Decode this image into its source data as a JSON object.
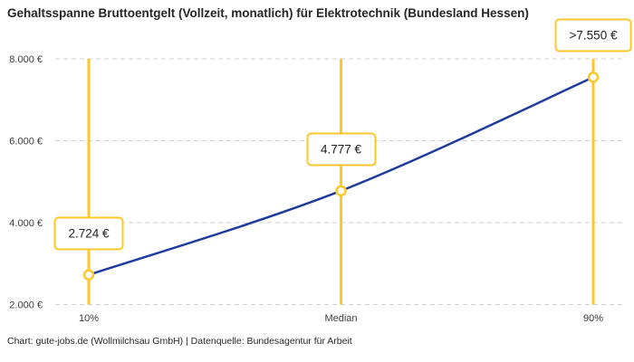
{
  "page": {
    "title": "Gehaltsspanne Bruttoentgelt (Vollzeit, monatlich) für Elektrotechnik (Bundesland Hessen)",
    "footer": "Chart: gute-jobs.de (Wollmilchsau GmbH) | Datenquelle: Bundesagentur für Arbeit"
  },
  "colors": {
    "accent_yellow": "#FFC629",
    "line_blue": "#1E3C9E",
    "grid_gray": "#CFCFCF",
    "title_text": "#262626",
    "axis_text": "#3D3D3D",
    "label_text": "#222222",
    "background": "#FFFFFF"
  },
  "chart_data": {
    "type": "line",
    "title": "Gehaltsspanne Bruttoentgelt (Vollzeit, monatlich) für Elektrotechnik (Bundesland Hessen)",
    "categories": [
      "10%",
      "Median",
      "90%"
    ],
    "series": [
      {
        "name": "Bruttoentgelt (monatlich)",
        "values": [
          2724,
          4777,
          7550
        ]
      }
    ],
    "point_labels": [
      "2.724 €",
      "4.777 €",
      ">7.550 €"
    ],
    "ylim": [
      2000,
      8000
    ],
    "yticks": [
      2000,
      4000,
      6000,
      8000
    ],
    "ytick_labels": [
      "2.000 €",
      "4.000 €",
      "6.000 €",
      "8.000 €"
    ],
    "xlabel": "",
    "ylabel": "",
    "grid": "horizontal-dashed",
    "legend": "none",
    "markers": "open circles, yellow stroke, vertical yellow guide line at each category"
  }
}
